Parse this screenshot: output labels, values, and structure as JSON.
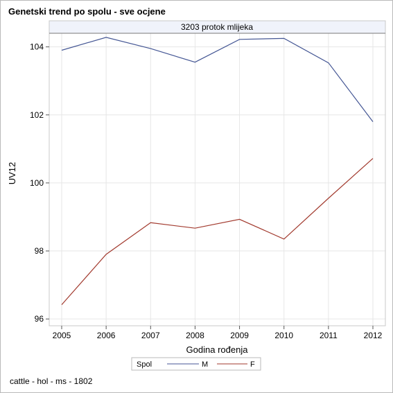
{
  "title": "Genetski trend po spolu - sve ocjene",
  "footnote": "cattle - hol - ms - 1802",
  "chart_data": {
    "type": "line",
    "title": "Genetski trend po spolu - sve ocjene",
    "panel_label": "3203 protok mlijeka",
    "xlabel": "Godina rođenja",
    "ylabel": "UV12",
    "x": [
      2005,
      2006,
      2007,
      2008,
      2009,
      2010,
      2011,
      2012
    ],
    "x_ticks": [
      "2005",
      "2006",
      "2007",
      "2008",
      "2009",
      "2010",
      "2011",
      "2012"
    ],
    "y_ticks": [
      "96",
      "98",
      "100",
      "102",
      "104"
    ],
    "ylim": [
      95.8,
      104.4
    ],
    "grid": true,
    "legend": {
      "title": "Spol",
      "position": "bottom"
    },
    "series": [
      {
        "name": "M",
        "color": "#445694",
        "values": [
          103.9,
          104.28,
          103.95,
          103.55,
          104.22,
          104.25,
          103.53,
          101.8
        ]
      },
      {
        "name": "F",
        "color": "#a23a2e",
        "values": [
          96.42,
          97.9,
          98.83,
          98.67,
          98.93,
          98.35,
          99.55,
          100.72
        ]
      }
    ]
  }
}
